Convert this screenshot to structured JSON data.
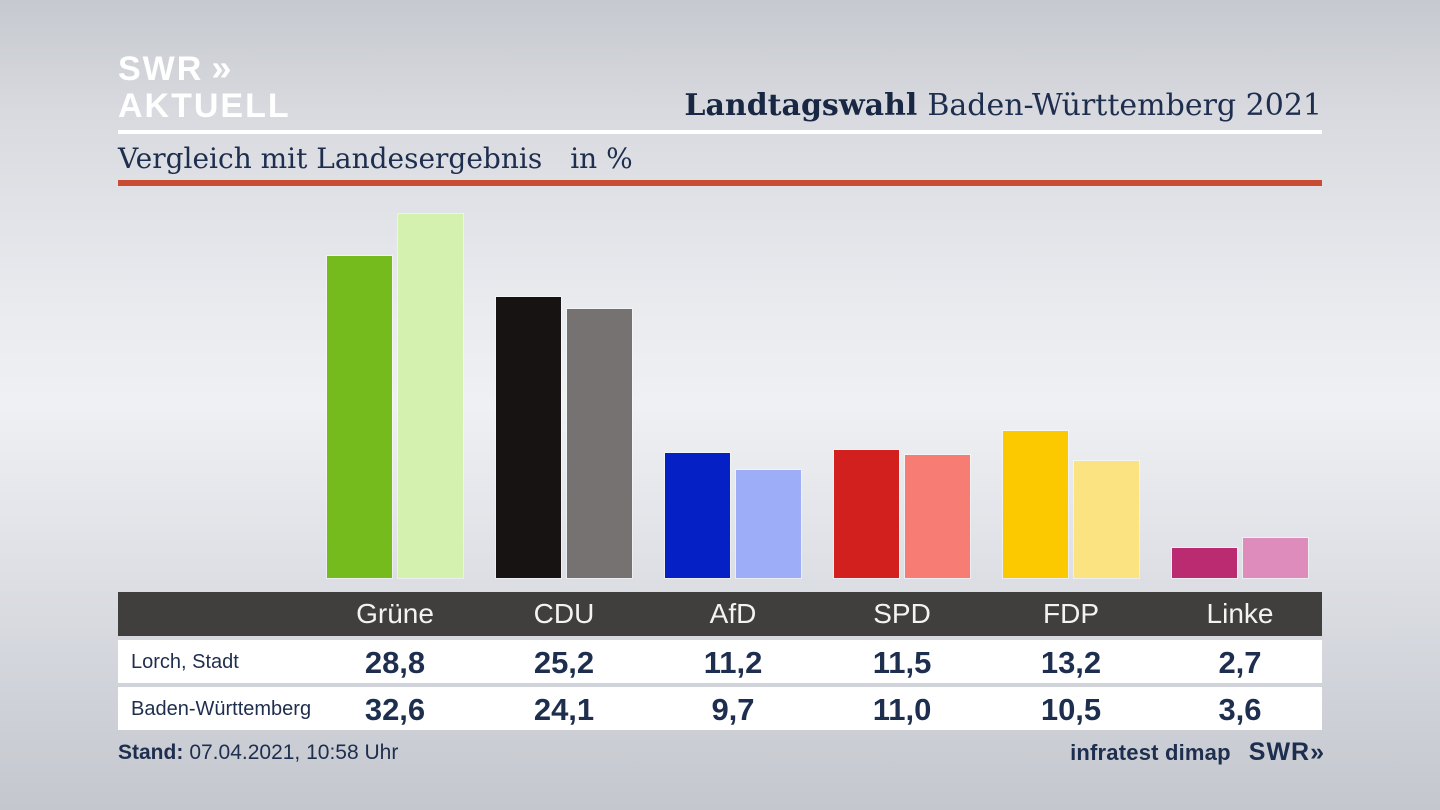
{
  "brand": {
    "logo_text": "SWR",
    "logo_chevrons": "»",
    "logo_subtext": "AKTUELL"
  },
  "header": {
    "title_bold": "Landtagswahl",
    "title_regular": "Baden-Württemberg 2021"
  },
  "subtitle": {
    "label": "Vergleich mit Landesergebnis",
    "unit": "in %"
  },
  "chart_data": {
    "type": "bar",
    "title": "Vergleich mit Landesergebnis in %",
    "unit": "%",
    "categories": [
      "Grüne",
      "CDU",
      "AfD",
      "SPD",
      "FDP",
      "Linke"
    ],
    "series": [
      {
        "name": "Lorch, Stadt",
        "values": [
          28.8,
          25.2,
          11.2,
          11.5,
          13.2,
          2.7
        ]
      },
      {
        "name": "Baden-Württemberg",
        "values": [
          32.6,
          24.1,
          9.7,
          11.0,
          10.5,
          3.6
        ]
      }
    ],
    "ylim": [
      0,
      35
    ],
    "grid": false,
    "legend_position": "table-rows",
    "decimal_separator": ",",
    "party_colors": [
      {
        "party": "Grüne",
        "main": "#76bb1e",
        "compare": "#d5f1af"
      },
      {
        "party": "CDU",
        "main": "#171313",
        "compare": "#767271"
      },
      {
        "party": "AfD",
        "main": "#0520c5",
        "compare": "#9dadf8"
      },
      {
        "party": "SPD",
        "main": "#d2201f",
        "compare": "#f67c74"
      },
      {
        "party": "FDP",
        "main": "#fcc800",
        "compare": "#fbe382"
      },
      {
        "party": "Linke",
        "main": "#bb2b72",
        "compare": "#de8cbc"
      }
    ]
  },
  "footer": {
    "stand_label": "Stand:",
    "stand_value": "07.04.2021, 10:58 Uhr",
    "source": "infratest dimap",
    "source_logo": "SWR",
    "source_logo_chevrons": "»"
  },
  "colors": {
    "accent_red": "#c94b31",
    "navy": "#1e2e4e",
    "table_header_bg": "#413e3e",
    "table_header_text": "#f3f3f3",
    "row_bg": "#ffffff",
    "brand_text": "#ffffff"
  }
}
